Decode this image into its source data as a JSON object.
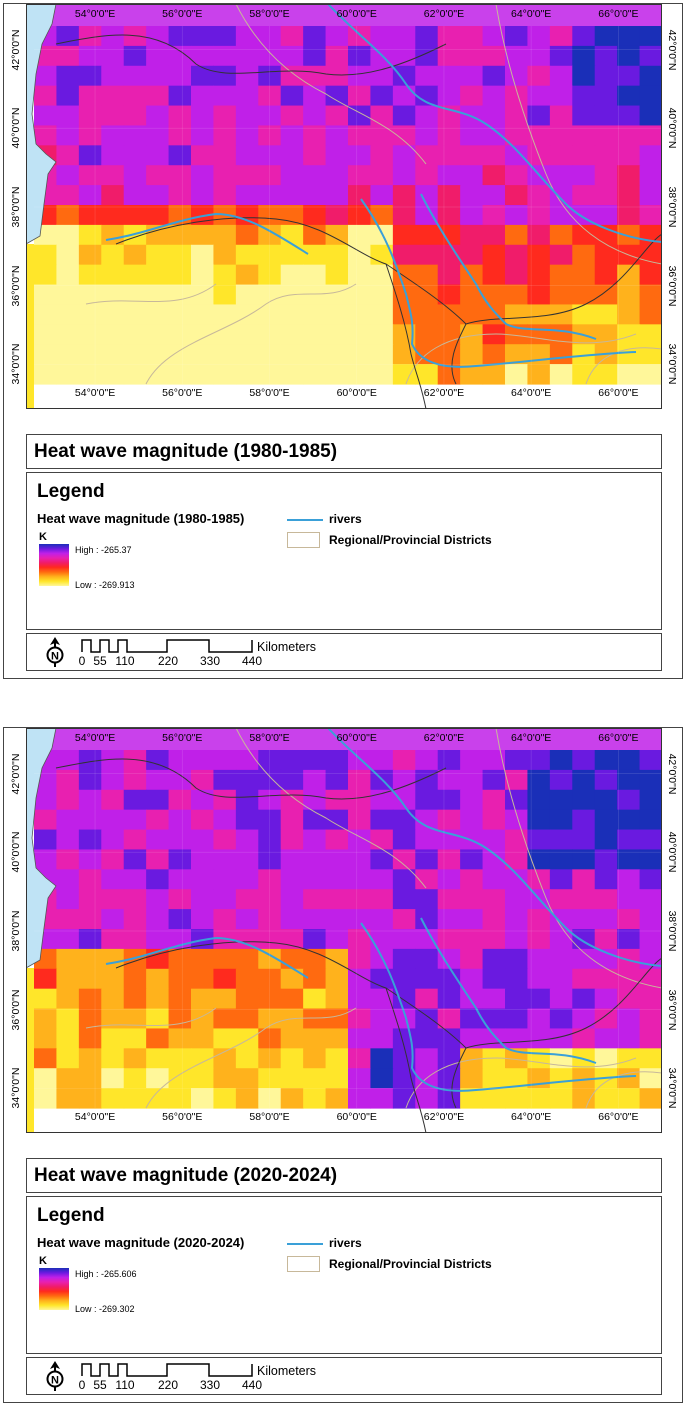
{
  "map_axes": {
    "lon_labels": [
      "54°0'0\"E",
      "56°0'0\"E",
      "58°0'0\"E",
      "60°0'0\"E",
      "62°0'0\"E",
      "64°0'0\"E",
      "66°0'0\"E"
    ],
    "lat_labels": [
      "42°0'0\"N",
      "40°0'0\"N",
      "38°0'0\"N",
      "36°0'0\"N",
      "34°0'0\"N"
    ]
  },
  "colors": {
    "sea": "#bfe3f5",
    "river": "#3aa0d8",
    "district_border": "#c7b89a",
    "country_border": "#333333",
    "ramp": [
      "#1a2fb8",
      "#6a1ae0",
      "#c020e8",
      "#e820b0",
      "#f01c6a",
      "#ff2a1e",
      "#ff6a10",
      "#ffb21c",
      "#ffe62a",
      "#fff79a"
    ]
  },
  "panels": [
    {
      "title": "Heat wave magnitude (1980-1985)",
      "legend": {
        "heading": "Legend",
        "layer_name": "Heat wave magnitude (1980-1985)",
        "unit": "K",
        "high_label": "High : -265.37",
        "low_label": "Low : -269.913",
        "rivers_label": "rivers",
        "districts_label": "Regional/Provincial Districts"
      },
      "scale_bar": {
        "ticks": [
          "0",
          "55",
          "110",
          "220",
          "330",
          "440"
        ],
        "unit": "Kilometers"
      },
      "north_label": "N"
    },
    {
      "title": "Heat wave magnitude (2020-2024)",
      "legend": {
        "heading": "Legend",
        "layer_name": "Heat wave magnitude (2020-2024)",
        "unit": "K",
        "high_label": "High : -265.606",
        "low_label": "Low : -269.302",
        "rivers_label": "rivers",
        "districts_label": "Regional/Provincial Districts"
      },
      "scale_bar": {
        "ticks": [
          "0",
          "55",
          "110",
          "220",
          "330",
          "440"
        ],
        "unit": "Kilometers"
      },
      "north_label": "N"
    }
  ]
}
